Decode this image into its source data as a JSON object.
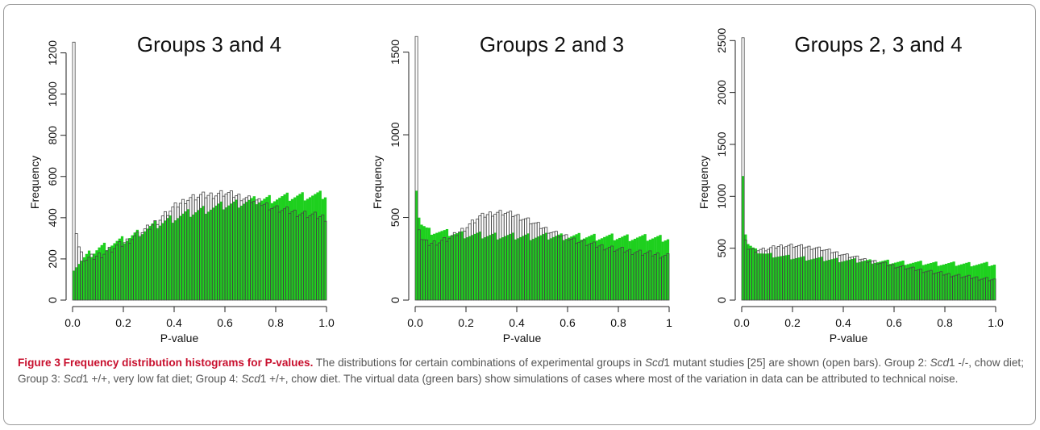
{
  "chart_data": [
    {
      "type": "bar",
      "title": "Groups  3 and 4",
      "xlabel": "P-value",
      "ylabel": "Frequency",
      "xlim": [
        0,
        1
      ],
      "ylim": [
        0,
        1300
      ],
      "x_ticks": [
        "0.0",
        "0.2",
        "0.4",
        "0.6",
        "0.8",
        "1.0"
      ],
      "x_tick_values": [
        0,
        0.2,
        0.4,
        0.6,
        0.8,
        1.0
      ],
      "y_ticks": [
        "0",
        "200",
        "400",
        "600",
        "800",
        "1000",
        "1200"
      ],
      "y_tick_values": [
        0,
        200,
        400,
        600,
        800,
        1000,
        1200
      ],
      "bins": 100,
      "series": [
        {
          "name": "open bars",
          "color": "#ffffff",
          "outline": "#444444",
          "anchors": [
            [
              0.005,
              1270
            ],
            [
              0.015,
              330
            ],
            [
              0.025,
              255
            ],
            [
              0.035,
              220
            ],
            [
              0.05,
              195
            ],
            [
              0.1,
              215
            ],
            [
              0.2,
              275
            ],
            [
              0.3,
              350
            ],
            [
              0.4,
              450
            ],
            [
              0.45,
              490
            ],
            [
              0.5,
              505
            ],
            [
              0.55,
              510
            ],
            [
              0.6,
              520
            ],
            [
              0.65,
              505
            ],
            [
              0.7,
              490
            ],
            [
              0.8,
              445
            ],
            [
              0.9,
              420
            ],
            [
              1.0,
              400
            ]
          ]
        },
        {
          "name": "green bars",
          "color": "#1ed01e",
          "anchors": [
            [
              0.005,
              165
            ],
            [
              0.05,
              205
            ],
            [
              0.1,
              250
            ],
            [
              0.2,
              290
            ],
            [
              0.3,
              350
            ],
            [
              0.4,
              400
            ],
            [
              0.5,
              435
            ],
            [
              0.6,
              460
            ],
            [
              0.7,
              480
            ],
            [
              0.8,
              495
            ],
            [
              0.9,
              505
            ],
            [
              1.0,
              510
            ]
          ]
        }
      ]
    },
    {
      "type": "bar",
      "title": "Groups 2 and 3",
      "xlabel": "P-value",
      "ylabel": "Frequency",
      "xlim": [
        0,
        1
      ],
      "ylim": [
        0,
        1620
      ],
      "x_ticks": [
        "0.0",
        "0.2",
        "0.4",
        "0.6",
        "0.8",
        "1"
      ],
      "x_tick_values": [
        0,
        0.2,
        0.4,
        0.6,
        0.8,
        1.0
      ],
      "y_ticks": [
        "0",
        "500",
        "1000",
        "1500"
      ],
      "y_tick_values": [
        0,
        500,
        1000,
        1500
      ],
      "bins": 100,
      "series": [
        {
          "name": "open bars",
          "color": "#ffffff",
          "outline": "#444444",
          "anchors": [
            [
              0.005,
              1580
            ],
            [
              0.015,
              440
            ],
            [
              0.025,
              370
            ],
            [
              0.05,
              340
            ],
            [
              0.1,
              355
            ],
            [
              0.15,
              385
            ],
            [
              0.2,
              440
            ],
            [
              0.25,
              500
            ],
            [
              0.3,
              525
            ],
            [
              0.35,
              530
            ],
            [
              0.4,
              510
            ],
            [
              0.45,
              480
            ],
            [
              0.5,
              440
            ],
            [
              0.55,
              405
            ],
            [
              0.6,
              375
            ],
            [
              0.7,
              335
            ],
            [
              0.8,
              305
            ],
            [
              0.9,
              285
            ],
            [
              1.0,
              265
            ]
          ]
        },
        {
          "name": "green bars",
          "color": "#1ed01e",
          "anchors": [
            [
              0.005,
              680
            ],
            [
              0.015,
              510
            ],
            [
              0.025,
              460
            ],
            [
              0.05,
              420
            ],
            [
              0.2,
              395
            ],
            [
              0.4,
              385
            ],
            [
              0.6,
              385
            ],
            [
              0.8,
              380
            ],
            [
              1.0,
              375
            ]
          ]
        }
      ]
    },
    {
      "type": "bar",
      "title": "Groups 2, 3 and 4",
      "xlabel": "P-value",
      "ylabel": "Frequency",
      "xlim": [
        0,
        1
      ],
      "ylim": [
        0,
        2580
      ],
      "x_ticks": [
        "0.0",
        "0.2",
        "0.4",
        "0.6",
        "0.8",
        "1.0"
      ],
      "x_tick_values": [
        0,
        0.2,
        0.4,
        0.6,
        0.8,
        1.0
      ],
      "y_ticks": [
        "0",
        "500",
        "1000",
        "1500",
        "2000",
        "2500"
      ],
      "y_tick_values": [
        0,
        500,
        1000,
        1500,
        2000,
        2500
      ],
      "bins": 100,
      "series": [
        {
          "name": "open bars",
          "color": "#ffffff",
          "outline": "#444444",
          "anchors": [
            [
              0.005,
              2520
            ],
            [
              0.015,
              560
            ],
            [
              0.025,
              500
            ],
            [
              0.05,
              480
            ],
            [
              0.1,
              490
            ],
            [
              0.15,
              520
            ],
            [
              0.2,
              525
            ],
            [
              0.3,
              500
            ],
            [
              0.4,
              440
            ],
            [
              0.5,
              380
            ],
            [
              0.6,
              330
            ],
            [
              0.7,
              290
            ],
            [
              0.8,
              250
            ],
            [
              0.9,
              220
            ],
            [
              1.0,
              195
            ]
          ]
        },
        {
          "name": "green bars",
          "color": "#1ed01e",
          "anchors": [
            [
              0.005,
              1210
            ],
            [
              0.015,
              640
            ],
            [
              0.025,
              540
            ],
            [
              0.05,
              480
            ],
            [
              0.1,
              440
            ],
            [
              0.2,
              410
            ],
            [
              0.4,
              385
            ],
            [
              0.6,
              365
            ],
            [
              0.8,
              350
            ],
            [
              1.0,
              345
            ]
          ]
        }
      ]
    }
  ],
  "caption": {
    "label": "Figure 3 Frequency distribution histograms for P-values.",
    "t1": " The distributions for certain combinations of experimental groups in ",
    "i1": "Scd",
    "t2": "1 mutant studies [25] are shown (open bars). Group 2: ",
    "i2": "Scd",
    "t3": "1 -/-, chow diet; Group 3: ",
    "i3": "Scd",
    "t4": "1 +/+, very low fat diet; Group 4: ",
    "i4": "Scd",
    "t5": "1 +/+, chow diet. The virtual data (green bars) show simulations of cases where most of the variation in data can be attributed to technical noise."
  }
}
